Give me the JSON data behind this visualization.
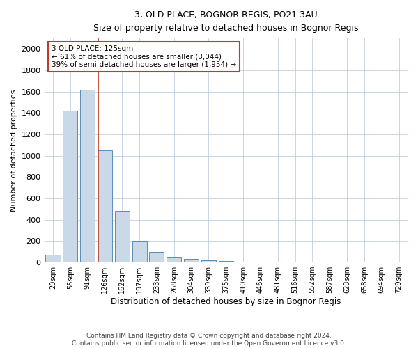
{
  "title": "3, OLD PLACE, BOGNOR REGIS, PO21 3AU",
  "subtitle": "Size of property relative to detached houses in Bognor Regis",
  "xlabel": "Distribution of detached houses by size in Bognor Regis",
  "ylabel": "Number of detached properties",
  "footer_line1": "Contains HM Land Registry data © Crown copyright and database right 2024.",
  "footer_line2": "Contains public sector information licensed under the Open Government Licence v3.0.",
  "annotation_line1": "3 OLD PLACE: 125sqm",
  "annotation_line2": "← 61% of detached houses are smaller (3,044)",
  "annotation_line3": "39% of semi-detached houses are larger (1,954) →",
  "bar_color": "#c9d9e8",
  "bar_edge_color": "#5a8db5",
  "vline_color": "#c0392b",
  "annotation_box_color": "#c0392b",
  "background_color": "#ffffff",
  "grid_color": "#c0cfe0",
  "categories": [
    "20sqm",
    "55sqm",
    "91sqm",
    "126sqm",
    "162sqm",
    "197sqm",
    "233sqm",
    "268sqm",
    "304sqm",
    "339sqm",
    "375sqm",
    "410sqm",
    "446sqm",
    "481sqm",
    "516sqm",
    "552sqm",
    "587sqm",
    "623sqm",
    "658sqm",
    "694sqm",
    "729sqm"
  ],
  "values": [
    75,
    1420,
    1620,
    1050,
    480,
    200,
    100,
    50,
    30,
    20,
    15,
    0,
    0,
    0,
    0,
    0,
    0,
    0,
    0,
    0,
    0
  ],
  "ylim": [
    0,
    2100
  ],
  "yticks": [
    0,
    200,
    400,
    600,
    800,
    1000,
    1200,
    1400,
    1600,
    1800,
    2000
  ],
  "vline_x_index": 2.62,
  "figsize": [
    6.0,
    5.0
  ],
  "dpi": 100
}
